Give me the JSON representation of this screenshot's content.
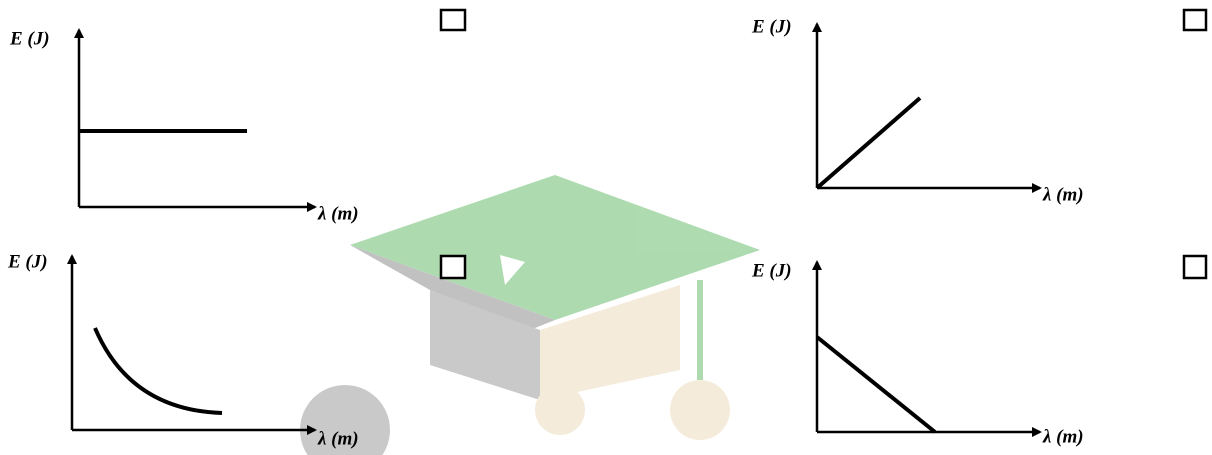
{
  "panels": [
    {
      "y_label": "E (J)",
      "x_label": "λ (m)"
    },
    {
      "y_label": "E (J)",
      "x_label": "λ (m)"
    },
    {
      "y_label": "E (J)",
      "x_label": "λ (m)"
    },
    {
      "y_label": "E (J)",
      "x_label": "λ (m)"
    }
  ]
}
